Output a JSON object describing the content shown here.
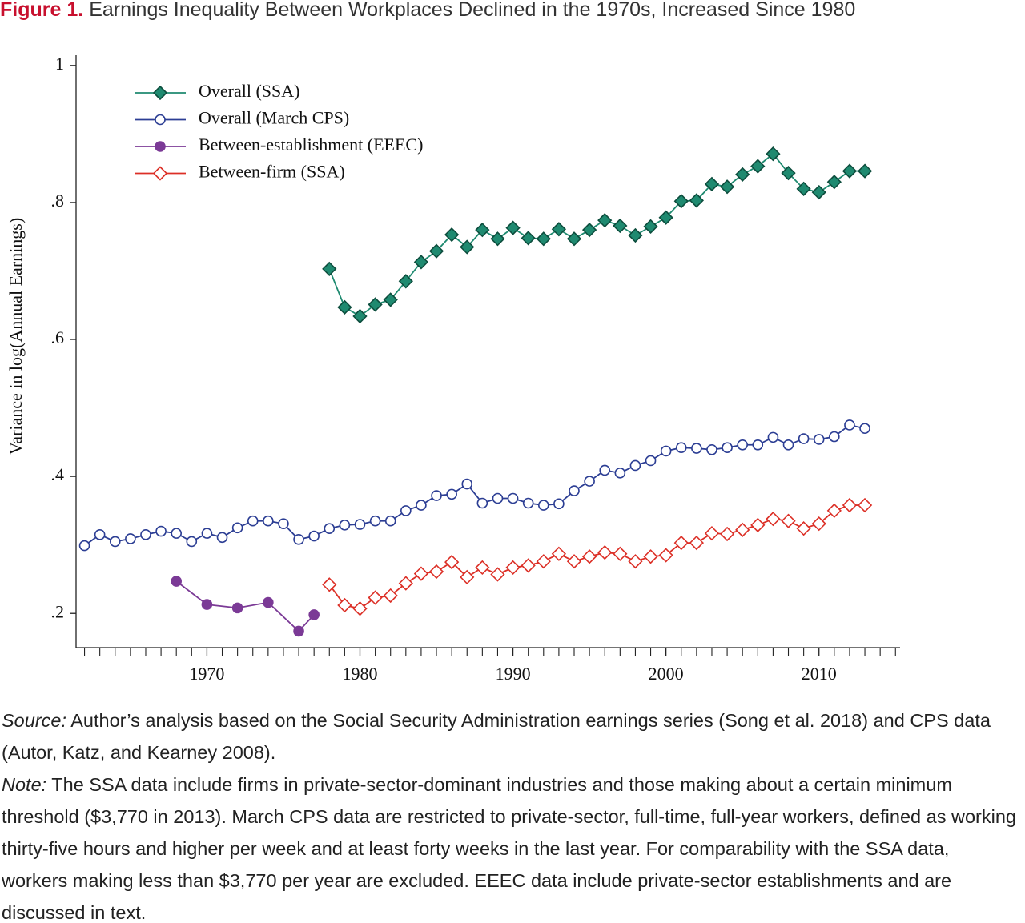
{
  "chart_data": {
    "type": "line",
    "title_label": "Figure 1.",
    "title": "Earnings Inequality Between Workplaces Declined in the 1970s, Increased Since 1980",
    "ylabel": "Variance in log(Annual Earnings)",
    "xlim": [
      1961.5,
      2015.3
    ],
    "xticks": [
      1970,
      1980,
      1990,
      2000,
      2010
    ],
    "xminor_ticks": [
      1962,
      1963,
      1964,
      1965,
      1966,
      1967,
      1968,
      1969,
      1971,
      1972,
      1973,
      1974,
      1975,
      1976,
      1977,
      1978,
      1979,
      1981,
      1982,
      1983,
      1984,
      1985,
      1986,
      1987,
      1988,
      1989,
      1991,
      1992,
      1993,
      1994,
      1995,
      1996,
      1997,
      1998,
      1999,
      2001,
      2002,
      2003,
      2004,
      2005,
      2006,
      2007,
      2008,
      2009,
      2011,
      2012,
      2013,
      2014,
      2015
    ],
    "ylim": [
      0.15,
      1.015
    ],
    "yticks": [
      {
        "value": 0.2,
        "label": ".2"
      },
      {
        "value": 0.4,
        "label": ".4"
      },
      {
        "value": 0.6,
        "label": ".6"
      },
      {
        "value": 0.8,
        "label": ".8"
      },
      {
        "value": 1,
        "label": "1"
      }
    ],
    "legend": "upper left",
    "series": [
      {
        "name": "Overall (SSA)",
        "color": "#1f8a70",
        "marker": "diamond",
        "filled": true,
        "x": [
          1978,
          1979,
          1980,
          1981,
          1982,
          1983,
          1984,
          1985,
          1986,
          1987,
          1988,
          1989,
          1990,
          1991,
          1992,
          1993,
          1994,
          1995,
          1996,
          1997,
          1998,
          1999,
          2000,
          2001,
          2002,
          2003,
          2004,
          2005,
          2006,
          2007,
          2008,
          2009,
          2010,
          2011,
          2012,
          2013
        ],
        "values": [
          0.703,
          0.647,
          0.634,
          0.651,
          0.658,
          0.685,
          0.713,
          0.729,
          0.753,
          0.735,
          0.76,
          0.747,
          0.763,
          0.748,
          0.747,
          0.761,
          0.747,
          0.76,
          0.774,
          0.766,
          0.752,
          0.765,
          0.778,
          0.802,
          0.803,
          0.827,
          0.823,
          0.841,
          0.853,
          0.871,
          0.843,
          0.82,
          0.815,
          0.83,
          0.846,
          0.846
        ]
      },
      {
        "name": "Overall (March CPS)",
        "color": "#2c3e94",
        "marker": "circle",
        "filled": false,
        "x": [
          1962,
          1963,
          1964,
          1965,
          1966,
          1967,
          1968,
          1969,
          1970,
          1971,
          1972,
          1973,
          1974,
          1975,
          1976,
          1977,
          1978,
          1979,
          1980,
          1981,
          1982,
          1983,
          1984,
          1985,
          1986,
          1987,
          1988,
          1989,
          1990,
          1991,
          1992,
          1993,
          1994,
          1995,
          1996,
          1997,
          1998,
          1999,
          2000,
          2001,
          2002,
          2003,
          2004,
          2005,
          2006,
          2007,
          2008,
          2009,
          2010,
          2011,
          2012,
          2013
        ],
        "values": [
          0.299,
          0.315,
          0.305,
          0.309,
          0.315,
          0.32,
          0.317,
          0.305,
          0.317,
          0.311,
          0.325,
          0.335,
          0.335,
          0.331,
          0.308,
          0.313,
          0.324,
          0.329,
          0.33,
          0.335,
          0.335,
          0.35,
          0.358,
          0.372,
          0.374,
          0.389,
          0.361,
          0.368,
          0.368,
          0.361,
          0.358,
          0.36,
          0.379,
          0.393,
          0.409,
          0.405,
          0.416,
          0.423,
          0.437,
          0.442,
          0.441,
          0.439,
          0.442,
          0.446,
          0.446,
          0.457,
          0.446,
          0.455,
          0.454,
          0.458,
          0.475,
          0.47
        ]
      },
      {
        "name": "Between-establishment (EEEC)",
        "color": "#7b3a96",
        "marker": "circle",
        "filled": true,
        "x": [
          1968,
          1970,
          1972,
          1974,
          1976,
          1977
        ],
        "values": [
          0.247,
          0.213,
          0.208,
          0.216,
          0.174,
          0.198
        ]
      },
      {
        "name": "Between-firm (SSA)",
        "color": "#dc2f26",
        "marker": "diamond",
        "filled": false,
        "x": [
          1978,
          1979,
          1980,
          1981,
          1982,
          1983,
          1984,
          1985,
          1986,
          1987,
          1988,
          1989,
          1990,
          1991,
          1992,
          1993,
          1994,
          1995,
          1996,
          1997,
          1998,
          1999,
          2000,
          2001,
          2002,
          2003,
          2004,
          2005,
          2006,
          2007,
          2008,
          2009,
          2010,
          2011,
          2012,
          2013
        ],
        "values": [
          0.242,
          0.212,
          0.207,
          0.223,
          0.226,
          0.244,
          0.258,
          0.261,
          0.275,
          0.253,
          0.267,
          0.257,
          0.267,
          0.27,
          0.276,
          0.287,
          0.276,
          0.283,
          0.289,
          0.287,
          0.276,
          0.283,
          0.285,
          0.303,
          0.303,
          0.317,
          0.316,
          0.322,
          0.329,
          0.338,
          0.335,
          0.324,
          0.331,
          0.35,
          0.358,
          0.358
        ]
      }
    ],
    "source_label": "Source:",
    "source": "Author’s analysis based on the Social Security Administration earnings series (Song et al. 2018) and CPS data (Autor, Katz, and Kearney 2008).",
    "note_label": "Note:",
    "note": "The SSA data include firms in private-sector-dominant industries and those making about a certain minimum threshold ($3,770 in 2013). March CPS data are restricted to private-sector, full-time, full-year workers, defined as working thirty-five hours and higher per week and at least forty weeks in the last year. For comparability with the SSA data, workers making less than $3,770 per year are excluded. EEEC data include private-sector establishments and are discussed in text."
  }
}
